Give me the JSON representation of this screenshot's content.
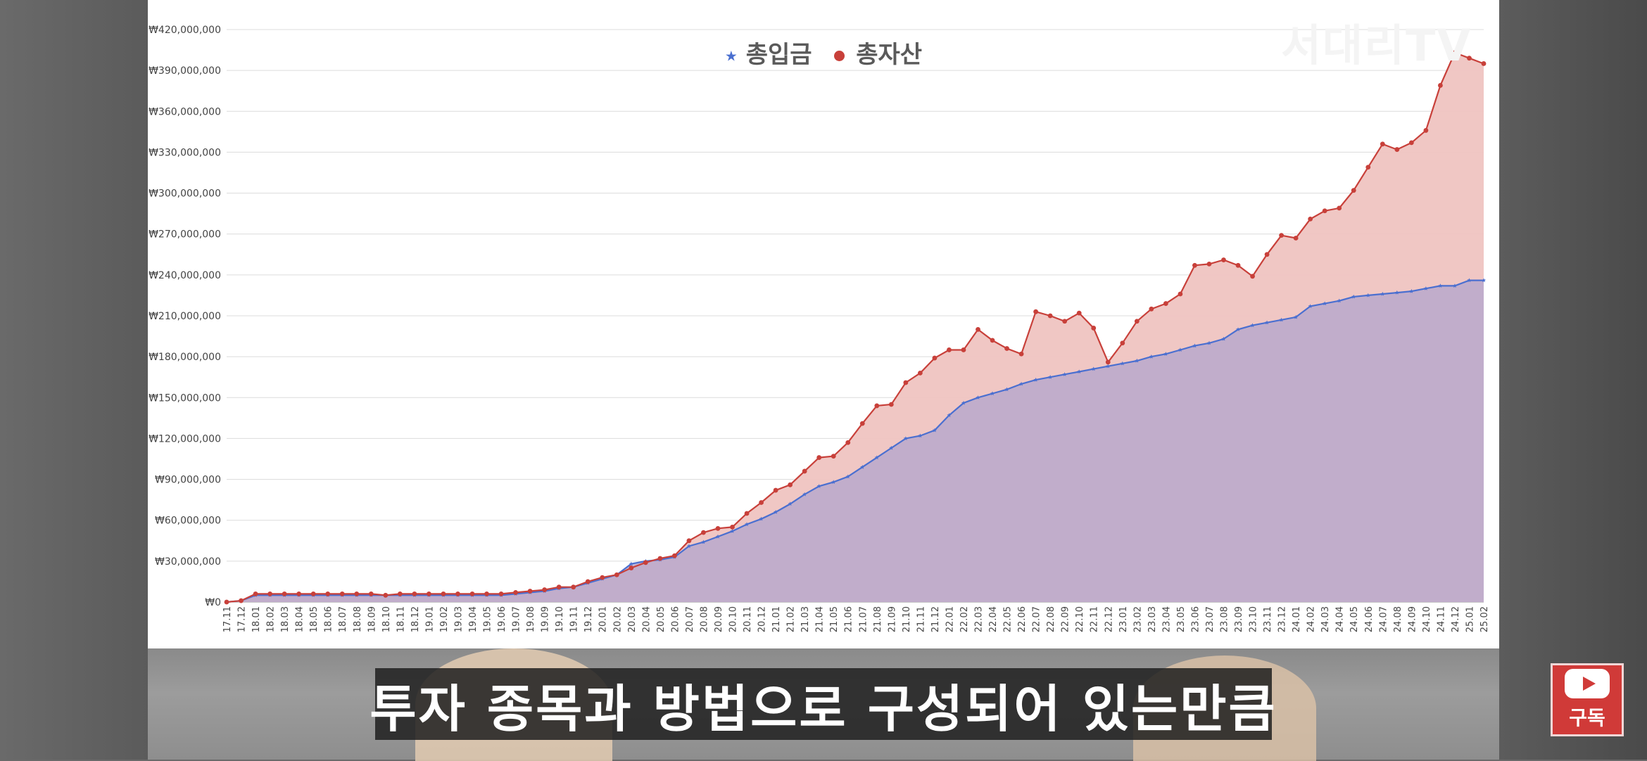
{
  "watermark": "서대리TV",
  "subtitle": "투자 종목과 방법으로 구성되어 있는만큼",
  "subscribe_label": "구독",
  "colors": {
    "deposit_line": "#4a6fd0",
    "deposit_fill": "#b8a8cc",
    "asset_line": "#c8403a",
    "asset_fill": "#efc4c1",
    "grid": "#dcdcdc",
    "axis_text": "#444444"
  },
  "chart_data": {
    "type": "area",
    "title": "",
    "xlabel": "",
    "ylabel": "",
    "ylim": [
      0,
      420000000
    ],
    "yticks": [
      0,
      30000000,
      60000000,
      90000000,
      120000000,
      150000000,
      180000000,
      210000000,
      240000000,
      270000000,
      300000000,
      330000000,
      360000000,
      390000000,
      420000000
    ],
    "ytick_labels": [
      "₩0",
      "₩30,000,000",
      "₩60,000,000",
      "₩90,000,000",
      "₩120,000,000",
      "₩150,000,000",
      "₩180,000,000",
      "₩210,000,000",
      "₩240,000,000",
      "₩270,000,000",
      "₩300,000,000",
      "₩330,000,000",
      "₩360,000,000",
      "₩390,000,000",
      "₩420,000,000"
    ],
    "grid": true,
    "legend_position": "top-center",
    "categories": [
      "17.11",
      "17.12",
      "18.01",
      "18.02",
      "18.03",
      "18.04",
      "18.05",
      "18.06",
      "18.07",
      "18.08",
      "18.09",
      "18.10",
      "18.11",
      "18.12",
      "19.01",
      "19.02",
      "19.03",
      "19.04",
      "19.05",
      "19.06",
      "19.07",
      "19.08",
      "19.09",
      "19.10",
      "19.11",
      "19.12",
      "20.01",
      "20.02",
      "20.03",
      "20.04",
      "20.05",
      "20.06",
      "20.07",
      "20.08",
      "20.09",
      "20.10",
      "20.11",
      "20.12",
      "21.01",
      "21.02",
      "21.03",
      "21.04",
      "21.05",
      "21.06",
      "21.07",
      "21.08",
      "21.09",
      "21.10",
      "21.11",
      "21.12",
      "22.01",
      "22.02",
      "22.03",
      "22.04",
      "22.05",
      "22.06",
      "22.07",
      "22.08",
      "22.09",
      "22.10",
      "22.11",
      "22.12",
      "23.01",
      "23.02",
      "23.03",
      "23.04",
      "23.05",
      "23.06",
      "23.07",
      "23.08",
      "23.09",
      "23.10",
      "23.11",
      "23.12",
      "24.01",
      "24.02",
      "24.03",
      "24.04",
      "24.05",
      "24.06",
      "24.07",
      "24.08",
      "24.09",
      "24.10",
      "24.11",
      "24.12",
      "25.01",
      "25.02"
    ],
    "series": [
      {
        "name": "총입금",
        "marker": "star",
        "values": [
          0,
          1000000,
          5000000,
          5000000,
          5000000,
          5000000,
          5000000,
          5000000,
          5000000,
          5000000,
          5000000,
          5000000,
          5000000,
          5000000,
          5000000,
          5000000,
          5000000,
          5000000,
          5000000,
          5000000,
          6000000,
          7000000,
          8000000,
          10000000,
          11000000,
          14000000,
          17000000,
          20000000,
          28000000,
          30000000,
          31000000,
          33000000,
          41000000,
          44000000,
          48000000,
          52000000,
          57000000,
          61000000,
          66000000,
          72000000,
          79000000,
          85000000,
          88000000,
          92000000,
          99000000,
          106000000,
          113000000,
          120000000,
          122000000,
          126000000,
          137000000,
          146000000,
          150000000,
          153000000,
          156000000,
          160000000,
          163000000,
          165000000,
          167000000,
          169000000,
          171000000,
          173000000,
          175000000,
          177000000,
          180000000,
          182000000,
          185000000,
          188000000,
          190000000,
          193000000,
          200000000,
          203000000,
          205000000,
          207000000,
          209000000,
          217000000,
          219000000,
          221000000,
          224000000,
          225000000,
          226000000,
          227000000,
          228000000,
          230000000,
          232000000,
          232000000,
          236000000,
          236000000
        ]
      },
      {
        "name": "총자산",
        "marker": "circle",
        "values": [
          0,
          1000000,
          6000000,
          6000000,
          6000000,
          6000000,
          6000000,
          6000000,
          6000000,
          6000000,
          6000000,
          5000000,
          6000000,
          6000000,
          6000000,
          6000000,
          6000000,
          6000000,
          6000000,
          6000000,
          7000000,
          8000000,
          9000000,
          11000000,
          11000000,
          15000000,
          18000000,
          20000000,
          25000000,
          29000000,
          32000000,
          34000000,
          45000000,
          51000000,
          54000000,
          55000000,
          65000000,
          73000000,
          82000000,
          86000000,
          96000000,
          106000000,
          107000000,
          117000000,
          131000000,
          144000000,
          145000000,
          161000000,
          168000000,
          179000000,
          185000000,
          185000000,
          200000000,
          192000000,
          186000000,
          182000000,
          213000000,
          210000000,
          206000000,
          212000000,
          201000000,
          176000000,
          190000000,
          206000000,
          215000000,
          219000000,
          226000000,
          247000000,
          248000000,
          251000000,
          247000000,
          239000000,
          255000000,
          269000000,
          267000000,
          281000000,
          287000000,
          289000000,
          302000000,
          319000000,
          336000000,
          332000000,
          337000000,
          346000000,
          379000000,
          403000000,
          399000000,
          395000000
        ]
      }
    ]
  }
}
